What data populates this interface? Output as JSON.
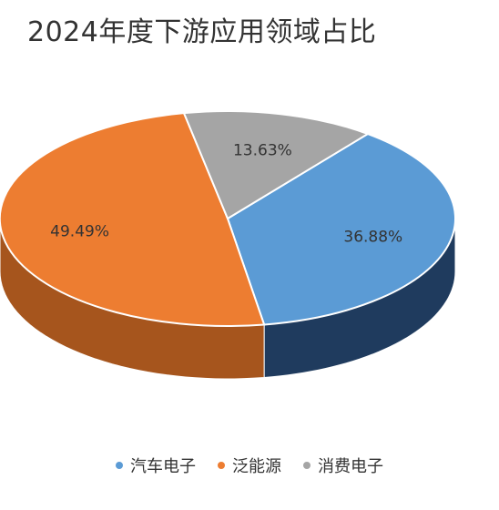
{
  "chart_data": {
    "type": "pie",
    "title": "2024年度下游应用领域占比",
    "categories": [
      "汽车电子",
      "泛能源",
      "消费电子"
    ],
    "values": [
      36.88,
      49.49,
      13.63
    ],
    "data_labels": [
      "36.88%",
      "49.49%",
      "13.63%"
    ],
    "colors": [
      "#5b9bd5",
      "#ed7d31",
      "#a5a5a5"
    ],
    "side_colors": [
      "#1f3b5e",
      "#a6551d",
      "#6f6f6f"
    ],
    "legend_position": "bottom",
    "style": "3d-tilted"
  }
}
